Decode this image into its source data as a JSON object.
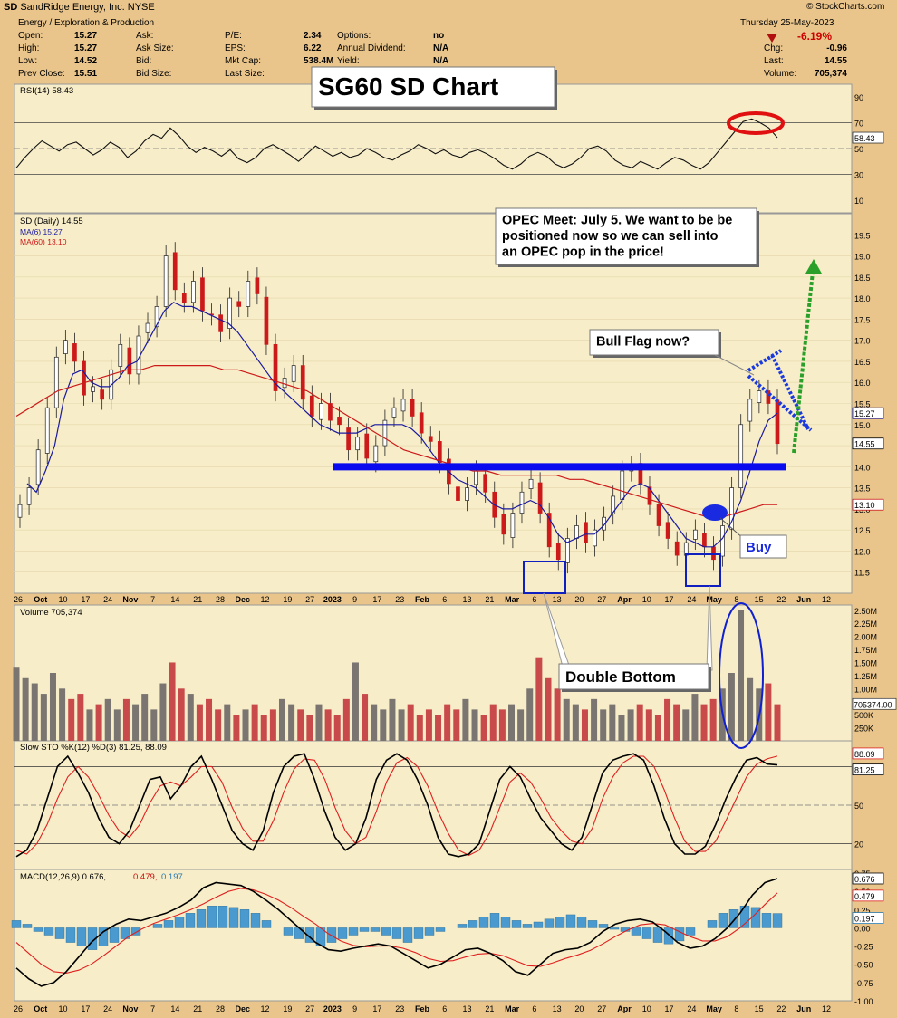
{
  "header": {
    "ticker": "SD",
    "company": "SandRidge Energy, Inc.",
    "exchange": "NYSE",
    "copyright": "© StockCharts.com",
    "sector": "Energy / Exploration & Production",
    "date": "Thursday  25-May-2023",
    "change_pct": "-6.19%",
    "stats": [
      {
        "label": "Open:",
        "value": "15.27"
      },
      {
        "label": "High:",
        "value": "15.27"
      },
      {
        "label": "Low:",
        "value": "14.52"
      },
      {
        "label": "Prev Close:",
        "value": "15.51"
      },
      {
        "label": "Ask:",
        "value": ""
      },
      {
        "label": "Ask Size:",
        "value": ""
      },
      {
        "label": "Bid:",
        "value": ""
      },
      {
        "label": "Bid Size:",
        "value": ""
      },
      {
        "label": "P/E:",
        "value": "2.34"
      },
      {
        "label": "EPS:",
        "value": "6.22"
      },
      {
        "label": "Mkt Cap:",
        "value": "538.4M"
      },
      {
        "label": "Last Size:",
        "value": ""
      },
      {
        "label": "Options:",
        "value": "no"
      },
      {
        "label": "Annual Dividend:",
        "value": "N/A"
      },
      {
        "label": "Yield:",
        "value": "N/A"
      }
    ],
    "right_stats": [
      {
        "label": "Chg:",
        "value": "-0.96"
      },
      {
        "label": "Last:",
        "value": "14.55"
      },
      {
        "label": "Volume:",
        "value": "705,374"
      }
    ]
  },
  "annotations": {
    "title": "SG60 SD Chart",
    "opec": [
      "OPEC Meet: July 5. We want to be be",
      "positioned now so we can sell into",
      "an OPEC pop in the price!"
    ],
    "bull_flag": "Bull Flag now?",
    "double_bottom": "Double Bottom",
    "buy": "Buy"
  },
  "colors": {
    "background": "#e9c58b",
    "panel": "#f7edc8",
    "up_candle": "#ffffff",
    "down_candle": "#cc1a1a",
    "ma6": "#1a1aa0",
    "ma60": "#cc1a1a",
    "support_line": "#0a0aee",
    "volume_up": "#7a7570",
    "volume_down": "#c84a4a",
    "macd_hist": "#4a9ad0"
  },
  "chart_data": [
    {
      "type": "line",
      "title": "RSI(14) 58.43",
      "ylim": [
        0,
        100
      ],
      "ticks": [
        "90",
        "70",
        "50",
        "30",
        "10"
      ],
      "last_value": "58.43",
      "values": [
        35,
        43,
        50,
        56,
        52,
        48,
        53,
        55,
        50,
        45,
        49,
        55,
        51,
        43,
        48,
        56,
        61,
        58,
        66,
        60,
        52,
        47,
        51,
        48,
        44,
        49,
        42,
        39,
        43,
        50,
        53,
        49,
        45,
        40,
        46,
        52,
        48,
        44,
        47,
        43,
        45,
        50,
        47,
        43,
        41,
        45,
        48,
        53,
        50,
        46,
        49,
        45,
        43,
        47,
        49,
        46,
        42,
        37,
        34,
        38,
        44,
        47,
        44,
        38,
        35,
        38,
        43,
        50,
        52,
        48,
        41,
        37,
        35,
        40,
        37,
        34,
        39,
        43,
        41,
        37,
        34,
        39,
        47,
        55,
        63,
        71,
        73,
        70,
        66,
        58.43
      ]
    },
    {
      "type": "candlestick",
      "title": "SD (Daily) 14.55",
      "series_names": [
        "MA(6) 15.27",
        "MA(60) 13.10"
      ],
      "ylim": [
        11,
        20
      ],
      "y_ticks": [
        "19.5",
        "19.0",
        "18.5",
        "18.0",
        "17.5",
        "17.0",
        "16.5",
        "16.0",
        "15.5",
        "15.0",
        "14.5",
        "14.0",
        "13.5",
        "13.0",
        "12.5",
        "12.0",
        "11.5"
      ],
      "x_labels": [
        "26",
        "Oct",
        "10",
        "17",
        "24",
        "Nov",
        "7",
        "14",
        "21",
        "28",
        "Dec",
        "12",
        "19",
        "27",
        "2023",
        "9",
        "17",
        "23",
        "Feb",
        "6",
        "13",
        "21",
        "Mar",
        "6",
        "13",
        "20",
        "27",
        "Apr",
        "10",
        "17",
        "24",
        "May",
        "8",
        "15",
        "22",
        "Jun",
        "12"
      ],
      "last_labels": [
        "15.27",
        "14.55",
        "13.10"
      ],
      "support_level": 14.0,
      "closes": [
        13.1,
        13.5,
        14.4,
        15.4,
        16.6,
        17.0,
        16.5,
        15.7,
        15.9,
        15.6,
        16.3,
        16.9,
        16.2,
        17.1,
        17.4,
        17.8,
        19.0,
        18.2,
        17.9,
        18.4,
        17.7,
        17.6,
        17.2,
        18.0,
        17.8,
        18.4,
        18.1,
        16.9,
        15.8,
        16.1,
        16.4,
        15.6,
        15.2,
        15.5,
        15.1,
        15.0,
        14.4,
        14.7,
        14.2,
        14.5,
        15.1,
        15.4,
        15.6,
        15.2,
        14.8,
        14.6,
        14.1,
        13.6,
        13.2,
        13.5,
        13.9,
        13.4,
        12.8,
        12.4,
        12.9,
        13.4,
        13.7,
        12.9,
        12.1,
        11.8,
        12.3,
        12.6,
        12.2,
        12.5,
        12.8,
        13.3,
        13.9,
        14.0,
        13.6,
        13.1,
        12.6,
        12.3,
        11.9,
        12.2,
        12.5,
        12.1,
        11.8,
        12.6,
        13.5,
        15.0,
        15.6,
        15.8,
        15.5,
        14.55
      ],
      "ma6": [
        13.6,
        13.4,
        13.9,
        14.5,
        15.6,
        16.2,
        16.3,
        16.0,
        15.9,
        15.9,
        16.1,
        16.4,
        16.5,
        16.9,
        17.3,
        17.7,
        17.9,
        17.8,
        17.8,
        17.7,
        17.6,
        17.5,
        17.4,
        17.2,
        16.9,
        16.6,
        16.3,
        16.0,
        15.8,
        15.6,
        15.4,
        15.2,
        15.0,
        14.9,
        14.8,
        14.8,
        14.8,
        14.9,
        15.0,
        15.0,
        15.0,
        15.0,
        14.9,
        14.7,
        14.4,
        14.1,
        13.9,
        13.7,
        13.6,
        13.5,
        13.3,
        13.1,
        13.0,
        13.0,
        13.1,
        13.2,
        13.1,
        12.8,
        12.4,
        12.2,
        12.3,
        12.4,
        12.4,
        12.6,
        12.9,
        13.2,
        13.5,
        13.6,
        13.5,
        13.2,
        12.9,
        12.6,
        12.3,
        12.2,
        12.1,
        12.1,
        12.3,
        12.7,
        13.2,
        13.9,
        14.6,
        15.1,
        15.27
      ],
      "ma60": [
        15.2,
        15.4,
        15.6,
        15.8,
        15.9,
        16.0,
        16.1,
        16.2,
        16.3,
        16.3,
        16.4,
        16.4,
        16.4,
        16.4,
        16.4,
        16.3,
        16.3,
        16.2,
        16.1,
        16.0,
        15.9,
        15.8,
        15.6,
        15.4,
        15.2,
        15.0,
        14.8,
        14.6,
        14.4,
        14.3,
        14.2,
        14.1,
        14.0,
        13.9,
        13.9,
        13.8,
        13.8,
        13.8,
        13.8,
        13.8,
        13.7,
        13.7,
        13.6,
        13.5,
        13.4,
        13.3,
        13.2,
        13.1,
        13.0,
        12.9,
        12.8,
        12.8,
        12.9,
        13.0,
        13.1,
        13.1
      ]
    },
    {
      "type": "bar",
      "title": "Volume 705,374",
      "y_ticks": [
        "2.50M",
        "2.25M",
        "2.00M",
        "1.75M",
        "1.50M",
        "1.25M",
        "1.00M",
        "750K",
        "500K",
        "250K"
      ],
      "last_label": "705374.00",
      "ylim": [
        0,
        2.6
      ],
      "units": "millions",
      "values": [
        1.4,
        1.2,
        1.1,
        0.9,
        1.3,
        1.0,
        0.8,
        0.9,
        0.6,
        0.7,
        0.8,
        0.6,
        0.8,
        0.7,
        0.9,
        0.6,
        1.1,
        1.5,
        1.0,
        0.9,
        0.7,
        0.8,
        0.6,
        0.7,
        0.5,
        0.6,
        0.7,
        0.5,
        0.6,
        0.8,
        0.7,
        0.6,
        0.5,
        0.7,
        0.6,
        0.5,
        0.8,
        1.5,
        0.9,
        0.7,
        0.6,
        0.8,
        0.6,
        0.7,
        0.5,
        0.6,
        0.5,
        0.7,
        0.6,
        0.8,
        0.6,
        0.5,
        0.7,
        0.6,
        0.7,
        0.6,
        1.0,
        1.6,
        1.2,
        1.0,
        0.8,
        0.7,
        0.6,
        0.8,
        0.6,
        0.7,
        0.5,
        0.6,
        0.7,
        0.6,
        0.5,
        0.8,
        0.7,
        0.6,
        0.9,
        0.7,
        0.8,
        1.0,
        1.3,
        2.5,
        1.2,
        1.0,
        1.1,
        0.7
      ]
    },
    {
      "type": "line",
      "title": "Slow STO %K(12) %D(3) 81.25, 88.09",
      "ylim": [
        0,
        100
      ],
      "y_ticks": [
        "80",
        "50",
        "20"
      ],
      "last_labels": [
        "88.09",
        "81.25"
      ],
      "series": [
        {
          "name": "%K(12)",
          "values": [
            10,
            15,
            30,
            55,
            80,
            88,
            75,
            60,
            40,
            25,
            20,
            30,
            50,
            70,
            72,
            55,
            65,
            80,
            88,
            70,
            50,
            30,
            20,
            15,
            30,
            60,
            80,
            88,
            90,
            70,
            45,
            25,
            15,
            20,
            40,
            70,
            85,
            90,
            85,
            70,
            50,
            25,
            12,
            10,
            12,
            20,
            45,
            70,
            80,
            72,
            55,
            40,
            30,
            20,
            15,
            25,
            50,
            75,
            85,
            88,
            90,
            85,
            65,
            40,
            20,
            12,
            12,
            18,
            35,
            55,
            72,
            85,
            87,
            82,
            81.25
          ]
        },
        {
          "name": "%D(3)",
          "values": [
            15,
            12,
            20,
            35,
            55,
            72,
            80,
            72,
            58,
            42,
            30,
            25,
            35,
            52,
            65,
            68,
            65,
            72,
            80,
            80,
            68,
            48,
            32,
            22,
            22,
            38,
            60,
            78,
            86,
            85,
            70,
            48,
            30,
            20,
            25,
            45,
            68,
            83,
            87,
            80,
            65,
            45,
            28,
            15,
            11,
            15,
            28,
            48,
            68,
            75,
            68,
            55,
            40,
            30,
            22,
            20,
            32,
            55,
            72,
            83,
            88,
            88,
            80,
            62,
            40,
            22,
            14,
            14,
            22,
            38,
            55,
            72,
            82,
            86,
            88.09
          ]
        }
      ]
    },
    {
      "type": "line",
      "title": "MACD(12,26,9) 0.676, 0.479, 0.197",
      "series_names": [
        "MACD(12,26,9) 0.676",
        "0.479",
        "0.197"
      ],
      "ylim": [
        -1.0,
        0.8
      ],
      "y_ticks": [
        "0.75",
        "0.50",
        "0.25",
        "0.00",
        "-0.25",
        "-0.50",
        "-0.75",
        "-1.00"
      ],
      "last_labels": [
        "0.676",
        "0.479",
        "0.197"
      ],
      "series": [
        {
          "name": "MACD",
          "values": [
            -0.55,
            -0.7,
            -0.8,
            -0.75,
            -0.6,
            -0.4,
            -0.2,
            -0.05,
            0.05,
            0.12,
            0.1,
            0.15,
            0.2,
            0.28,
            0.38,
            0.55,
            0.62,
            0.6,
            0.58,
            0.5,
            0.38,
            0.25,
            0.1,
            -0.05,
            -0.2,
            -0.3,
            -0.32,
            -0.28,
            -0.25,
            -0.22,
            -0.25,
            -0.35,
            -0.45,
            -0.55,
            -0.5,
            -0.4,
            -0.3,
            -0.28,
            -0.35,
            -0.45,
            -0.6,
            -0.65,
            -0.5,
            -0.35,
            -0.3,
            -0.28,
            -0.2,
            -0.05,
            0.05,
            0.1,
            0.12,
            0.08,
            -0.05,
            -0.2,
            -0.28,
            -0.25,
            -0.15,
            0.0,
            0.2,
            0.45,
            0.62,
            0.676
          ]
        },
        {
          "name": "Signal",
          "values": [
            -0.2,
            -0.35,
            -0.5,
            -0.6,
            -0.62,
            -0.58,
            -0.5,
            -0.38,
            -0.25,
            -0.12,
            -0.02,
            0.06,
            0.12,
            0.18,
            0.25,
            0.33,
            0.42,
            0.5,
            0.54,
            0.52,
            0.46,
            0.38,
            0.28,
            0.16,
            0.05,
            -0.08,
            -0.18,
            -0.24,
            -0.26,
            -0.25,
            -0.25,
            -0.28,
            -0.34,
            -0.42,
            -0.46,
            -0.45,
            -0.4,
            -0.36,
            -0.35,
            -0.38,
            -0.45,
            -0.52,
            -0.53,
            -0.48,
            -0.42,
            -0.37,
            -0.31,
            -0.22,
            -0.12,
            -0.03,
            0.04,
            0.06,
            0.04,
            -0.04,
            -0.12,
            -0.18,
            -0.18,
            -0.12,
            0.0,
            0.15,
            0.32,
            0.479
          ]
        }
      ],
      "histogram": [
        0.1,
        0.05,
        -0.05,
        -0.1,
        -0.15,
        -0.2,
        -0.25,
        -0.3,
        -0.25,
        -0.2,
        -0.15,
        -0.1,
        0.0,
        0.05,
        0.1,
        0.15,
        0.2,
        0.25,
        0.3,
        0.3,
        0.28,
        0.25,
        0.2,
        0.1,
        0.0,
        -0.1,
        -0.15,
        -0.2,
        -0.25,
        -0.2,
        -0.15,
        -0.1,
        -0.05,
        -0.05,
        -0.1,
        -0.15,
        -0.2,
        -0.15,
        -0.1,
        -0.05,
        0.0,
        0.05,
        0.1,
        0.15,
        0.2,
        0.15,
        0.1,
        0.05,
        0.08,
        0.12,
        0.15,
        0.18,
        0.15,
        0.1,
        0.05,
        -0.02,
        -0.05,
        -0.1,
        -0.15,
        -0.2,
        -0.22,
        -0.18,
        -0.1,
        0.0,
        0.1,
        0.2,
        0.25,
        0.3,
        0.28,
        0.2,
        0.197
      ]
    }
  ]
}
